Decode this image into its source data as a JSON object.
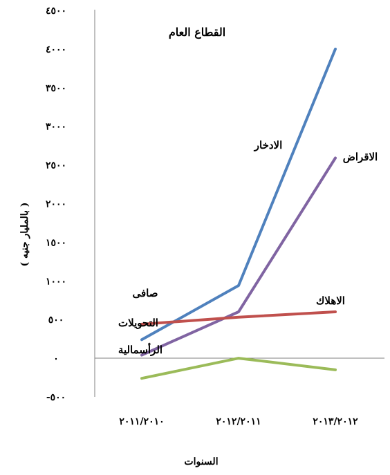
{
  "chart_data": {
    "type": "line",
    "title": "القطاع العام",
    "xlabel": "السنوات",
    "ylabel": "( بالمليار جنيه )",
    "categories": [
      "٢٠١١/٢٠١٠",
      "٢٠١٢/٢٠١١",
      "٢٠١٣/٢٠١٢"
    ],
    "yticks": [
      "٤٥٠٠",
      "٤٠٠٠",
      "٣٥٠٠",
      "٣٠٠٠",
      "٢٥٠٠",
      "٢٠٠٠",
      "١٥٠٠",
      "١٠٠٠",
      "٥٠٠",
      "٠",
      "-٥٠٠"
    ],
    "ylim": [
      -500,
      4500
    ],
    "grid": false,
    "legend": "none",
    "series": [
      {
        "name": "الادخار",
        "color": "#4f81bd",
        "values": [
          240,
          940,
          4000
        ]
      },
      {
        "name": "الاقراض",
        "color": "#8064a2",
        "values": [
          40,
          600,
          2590
        ]
      },
      {
        "name": "الاهلاك",
        "color": "#c0504d",
        "values": [
          440,
          530,
          600
        ]
      },
      {
        "name": "صافى التحويلات الرأسمالية",
        "color": "#9bbb59",
        "values": [
          -260,
          0,
          -150
        ]
      }
    ],
    "annotations": [
      {
        "text": "الادخار"
      },
      {
        "text": "الاقراض"
      },
      {
        "text": "الاهلاك"
      },
      {
        "text": "صافى"
      },
      {
        "text": "التحويلات"
      },
      {
        "text": "الرأسمالية"
      }
    ]
  }
}
